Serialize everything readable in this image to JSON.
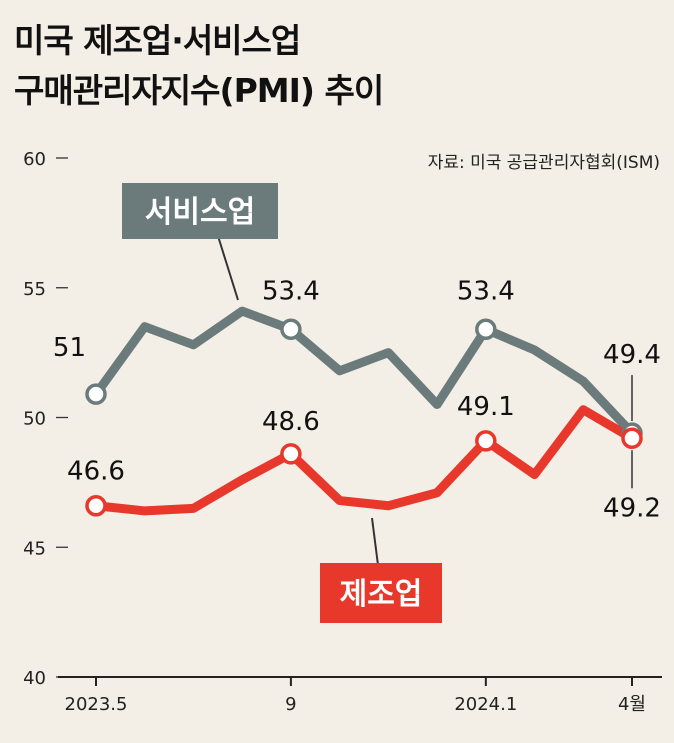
{
  "title": {
    "line1": "미국 제조업·서비스업",
    "line2": "구매관리자지수(PMI) 추이"
  },
  "source": "자료: 미국 공급관리자협회(ISM)",
  "chart_data": {
    "type": "line",
    "title": "미국 제조업·서비스업 구매관리자지수(PMI) 추이",
    "x": [
      "2023.5",
      "2023.6",
      "2023.7",
      "2023.8",
      "2023.9",
      "2023.10",
      "2023.11",
      "2023.12",
      "2024.1",
      "2024.2",
      "2024.3",
      "2024.4"
    ],
    "x_tick_labels": [
      {
        "index": 0,
        "label": "2023.5"
      },
      {
        "index": 4,
        "label": "9"
      },
      {
        "index": 8,
        "label": "2024.1"
      },
      {
        "index": 11,
        "label": "4월"
      }
    ],
    "ylim": [
      40,
      60
    ],
    "yticks": [
      60,
      55,
      50,
      45,
      40
    ],
    "series": [
      {
        "name": "서비스업",
        "color": "#6b7b7b",
        "values": [
          50.9,
          53.5,
          52.8,
          54.1,
          53.4,
          51.8,
          52.5,
          50.5,
          53.4,
          52.6,
          51.4,
          49.4
        ],
        "labels": [
          {
            "index": 0,
            "text": "51"
          },
          {
            "index": 4,
            "text": "53.4"
          },
          {
            "index": 8,
            "text": "53.4"
          },
          {
            "index": 11,
            "text": "49.4"
          }
        ]
      },
      {
        "name": "제조업",
        "color": "#e8382b",
        "values": [
          46.6,
          46.4,
          46.5,
          47.6,
          48.6,
          46.8,
          46.6,
          47.1,
          49.1,
          47.8,
          50.3,
          49.2
        ],
        "labels": [
          {
            "index": 0,
            "text": "46.6"
          },
          {
            "index": 4,
            "text": "48.6"
          },
          {
            "index": 8,
            "text": "49.1"
          },
          {
            "index": 11,
            "text": "49.2"
          }
        ]
      }
    ]
  }
}
